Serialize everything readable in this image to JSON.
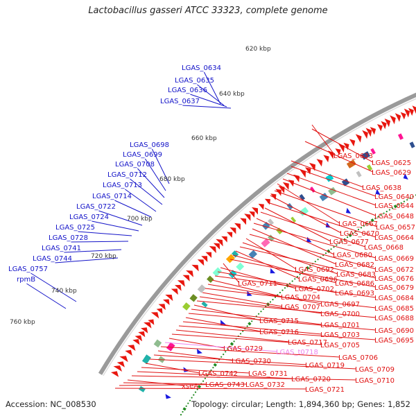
{
  "title": "Lactobacillus gasseri ATCC 33323, complete genome",
  "accession": "Accession: NC_008530",
  "summary": "Topology: circular; Length: 1,894,360 bp; Genes: 1,852",
  "colors": {
    "forward_gene": "#e8170f",
    "reverse_gene": "#1a1ae0",
    "ruler_tick": "#1f8a1f",
    "backbone": "#9a9a9a",
    "left_label": "#1212c8",
    "right_label": "#e01010",
    "trna_label": "#ee82ee"
  },
  "ruler_labels": [
    "620 kbp",
    "640 kbp",
    "660 kbp",
    "680 kbp",
    "700 kbp",
    "720 kbp",
    "740 kbp",
    "760 kbp"
  ],
  "left_labels": [
    "LGAS_0634",
    "LGAS_0635",
    "LGAS_0636",
    "LGAS_0637",
    "LGAS_0698",
    "LGAS_0699",
    "LGAS_0708",
    "LGAS_0712",
    "LGAS_0713",
    "LGAS_0714",
    "LGAS_0722",
    "LGAS_0724",
    "LGAS_0725",
    "LGAS_0728",
    "LGAS_0741",
    "LGAS_0744",
    "LGAS_0757",
    "rpmB"
  ],
  "right_labels": [
    "LGAS_0633",
    "LGAS_0625",
    "LGAS_0629",
    "LGAS_0638",
    "LGAS_0640",
    "LGAS_0644",
    "LGAS_0648",
    "LGAS_0667",
    "LGAS_0657",
    "LGAS_0670",
    "LGAS_0664",
    "LGAS_0677",
    "LGAS_0668",
    "LGAS_0680",
    "LGAS_0669",
    "LGAS_0682",
    "LGAS_0672",
    "LGAS_0692",
    "LGAS_0683",
    "LGAS_0676",
    "LGAS_0696",
    "LGAS_0686",
    "LGAS_0679",
    "LGAS_0711",
    "LGAS_0702",
    "LGAS_0693",
    "LGAS_0684",
    "LGAS_0704",
    "LGAS_0697",
    "LGAS_0685",
    "LGAS_0707",
    "LGAS_0700",
    "LGAS_0688",
    "LGAS_0715",
    "LGAS_0701",
    "LGAS_0690",
    "LGAS_0716",
    "LGAS_0703",
    "LGAS_0695",
    "LGAS_0717",
    "LGAS_0705",
    "LGAS_0729",
    "LGAS_t0718",
    "LGAS_0706",
    "LGAS_0730",
    "LGAS_0719",
    "LGAS_0709",
    "LGAS_0742",
    "LGAS_0731",
    "LGAS_0720",
    "LGAS_0710",
    "xseA",
    "LGAS_0743",
    "LGAS_0732",
    "LGAS_0721"
  ]
}
